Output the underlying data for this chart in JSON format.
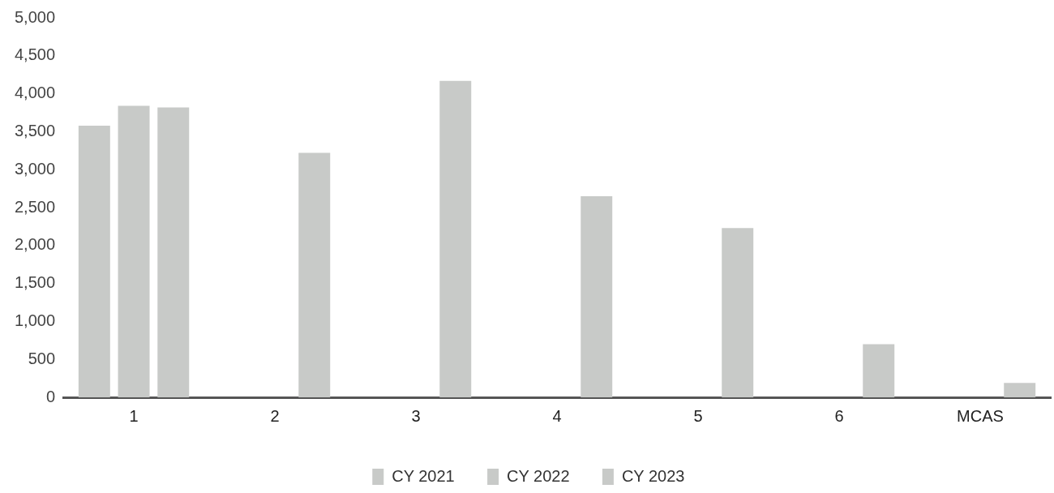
{
  "chart_data": {
    "type": "bar",
    "categories": [
      "1",
      "2",
      "3",
      "4",
      "5",
      "6",
      "MCAS"
    ],
    "series": [
      {
        "name": "CY 2021",
        "color": "#c8cac8",
        "values": [
          3580,
          null,
          null,
          null,
          null,
          null,
          null
        ]
      },
      {
        "name": "CY 2022",
        "color": "#c8cac8",
        "values": [
          3840,
          null,
          null,
          null,
          null,
          null,
          null
        ]
      },
      {
        "name": "CY 2023",
        "color": "#c8cac8",
        "values": [
          3820,
          3220,
          4170,
          2650,
          2230,
          700,
          190
        ]
      }
    ],
    "ylim": [
      0,
      5000
    ],
    "yticks": [
      0,
      500,
      {
        "value": 1000,
        "label": "1,000"
      },
      {
        "value": 1500,
        "label": "1,500"
      },
      {
        "value": 2000,
        "label": "2,000"
      },
      {
        "value": 2500,
        "label": "2,500"
      },
      {
        "value": 3000,
        "label": "3,000"
      },
      {
        "value": 3500,
        "label": "3,500"
      },
      {
        "value": 4000,
        "label": "4,000"
      },
      {
        "value": 4500,
        "label": "4,500"
      },
      {
        "value": 5000,
        "label": "5,000"
      }
    ],
    "grid": false,
    "legend": "bottom"
  }
}
